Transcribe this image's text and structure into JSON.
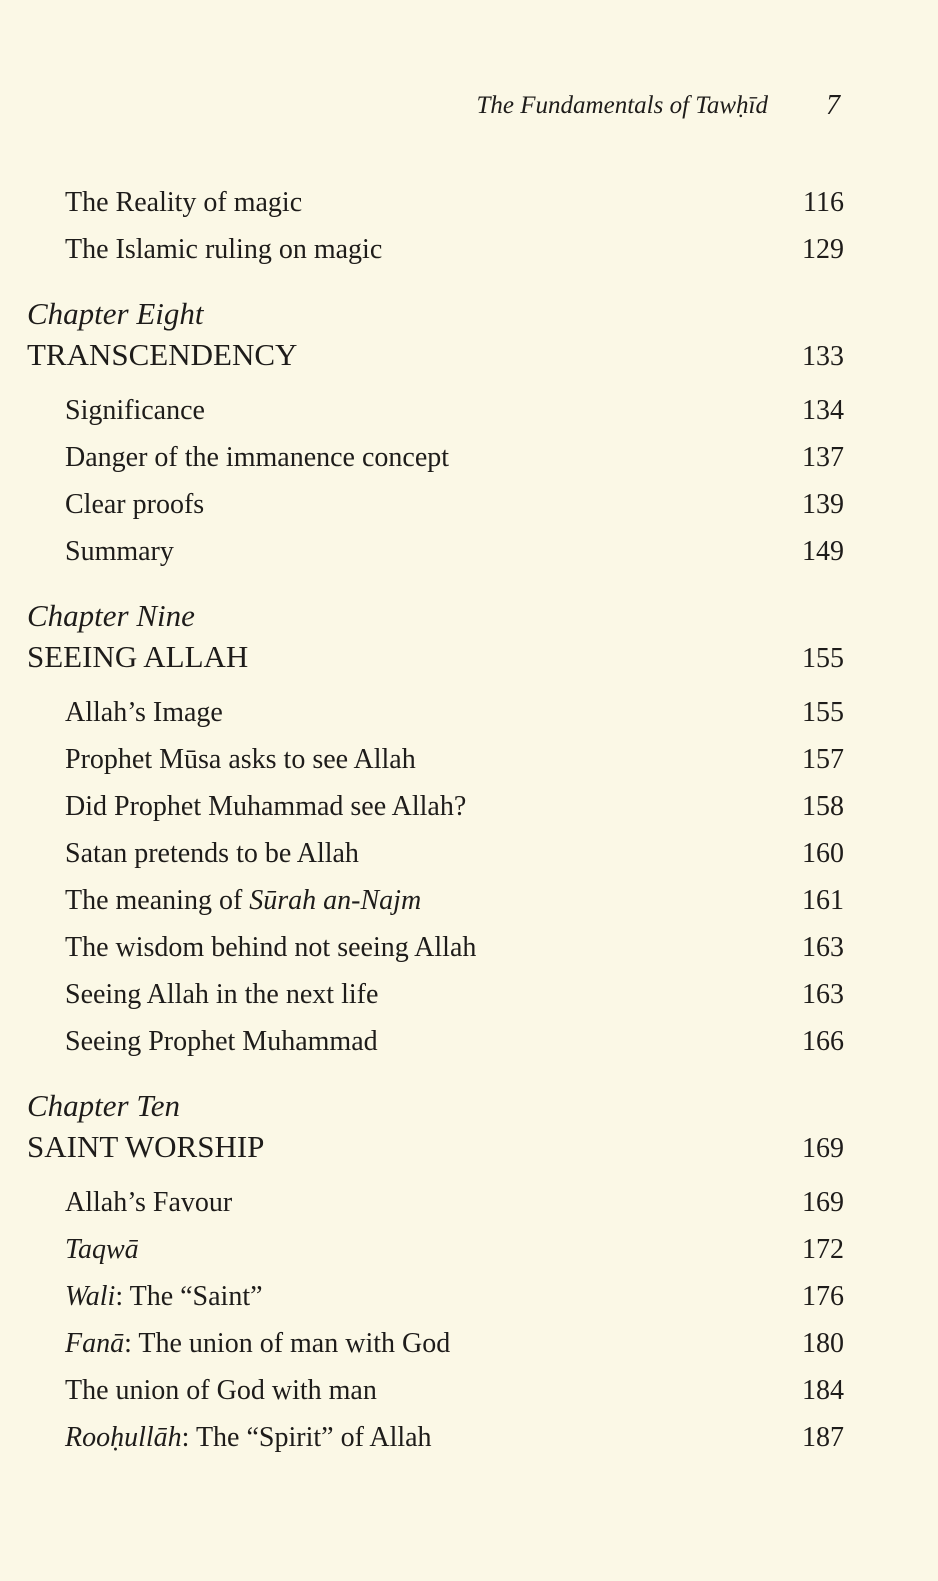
{
  "header": {
    "running_title": "The Fundamentals of Tawḥīd",
    "page_number": "7"
  },
  "sections": [
    {
      "chapter_label": "",
      "chapter_title": "",
      "chapter_page": "",
      "items": [
        {
          "parts": [
            {
              "t": "The Reality of magic",
              "i": false
            }
          ],
          "page": "116"
        },
        {
          "parts": [
            {
              "t": "The Islamic ruling on magic",
              "i": false
            }
          ],
          "page": "129"
        }
      ]
    },
    {
      "chapter_label": "Chapter Eight",
      "chapter_title": "TRANSCENDENCY",
      "chapter_page": "133",
      "items": [
        {
          "parts": [
            {
              "t": "Significance",
              "i": false
            }
          ],
          "page": "134"
        },
        {
          "parts": [
            {
              "t": "Danger of the immanence concept",
              "i": false
            }
          ],
          "page": "137"
        },
        {
          "parts": [
            {
              "t": "Clear proofs",
              "i": false
            }
          ],
          "page": "139"
        },
        {
          "parts": [
            {
              "t": "Summary",
              "i": false
            }
          ],
          "page": "149"
        }
      ]
    },
    {
      "chapter_label": "Chapter Nine",
      "chapter_title": "SEEING ALLAH",
      "chapter_page": "155",
      "items": [
        {
          "parts": [
            {
              "t": "Allah’s Image",
              "i": false
            }
          ],
          "page": "155"
        },
        {
          "parts": [
            {
              "t": "Prophet Mūsa asks to see Allah",
              "i": false
            }
          ],
          "page": "157"
        },
        {
          "parts": [
            {
              "t": "Did Prophet Muhammad see Allah?",
              "i": false
            }
          ],
          "page": "158"
        },
        {
          "parts": [
            {
              "t": "Satan pretends to be Allah",
              "i": false
            }
          ],
          "page": "160"
        },
        {
          "parts": [
            {
              "t": "The meaning of ",
              "i": false
            },
            {
              "t": "Sūrah an-Najm",
              "i": true
            }
          ],
          "page": "161"
        },
        {
          "parts": [
            {
              "t": "The wisdom behind not seeing Allah",
              "i": false
            }
          ],
          "page": "163"
        },
        {
          "parts": [
            {
              "t": "Seeing Allah in the next life",
              "i": false
            }
          ],
          "page": "163"
        },
        {
          "parts": [
            {
              "t": "Seeing Prophet Muhammad",
              "i": false
            }
          ],
          "page": "166"
        }
      ]
    },
    {
      "chapter_label": "Chapter Ten",
      "chapter_title": "SAINT WORSHIP",
      "chapter_page": "169",
      "items": [
        {
          "parts": [
            {
              "t": "Allah’s Favour",
              "i": false
            }
          ],
          "page": "169"
        },
        {
          "parts": [
            {
              "t": "Taqwā",
              "i": true
            }
          ],
          "page": "172"
        },
        {
          "parts": [
            {
              "t": "Wali",
              "i": true
            },
            {
              "t": ": The “Saint”",
              "i": false
            }
          ],
          "page": "176"
        },
        {
          "parts": [
            {
              "t": "Fanā",
              "i": true
            },
            {
              "t": ": The union of man with God",
              "i": false
            }
          ],
          "page": "180"
        },
        {
          "parts": [
            {
              "t": "The union of God with man",
              "i": false
            }
          ],
          "page": "184"
        },
        {
          "parts": [
            {
              "t": "Rooḥullāh",
              "i": true
            },
            {
              "t": ": The “Spirit” of Allah",
              "i": false
            }
          ],
          "page": "187"
        }
      ]
    }
  ]
}
